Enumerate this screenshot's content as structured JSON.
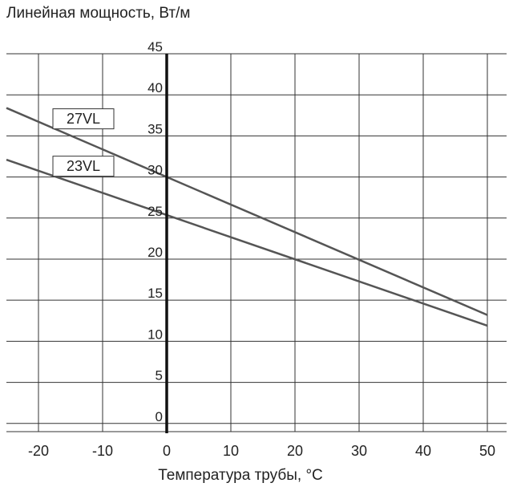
{
  "chart_data": {
    "type": "line",
    "title": "Линейная мощность, Вт/м",
    "xlabel": "Температура трубы, °C",
    "ylabel": "",
    "xlim": [
      -25,
      53
    ],
    "ylim": [
      -1,
      45
    ],
    "x_ticks": [
      -20,
      -10,
      0,
      10,
      20,
      30,
      40,
      50
    ],
    "y_ticks": [
      0,
      5,
      10,
      15,
      20,
      25,
      30,
      35,
      40,
      45
    ],
    "grid": true,
    "series": [
      {
        "name": "27VL",
        "x": [
          -25,
          50
        ],
        "y": [
          38.4,
          13.2
        ]
      },
      {
        "name": "23VL",
        "x": [
          -25,
          50
        ],
        "y": [
          32.1,
          11.9
        ]
      }
    ],
    "label_boxes": [
      {
        "text": "27VL",
        "series": "27VL"
      },
      {
        "text": "23VL",
        "series": "23VL"
      }
    ],
    "colors": {
      "line": "#555555",
      "grid": "#333333",
      "axis": "#111111"
    }
  }
}
